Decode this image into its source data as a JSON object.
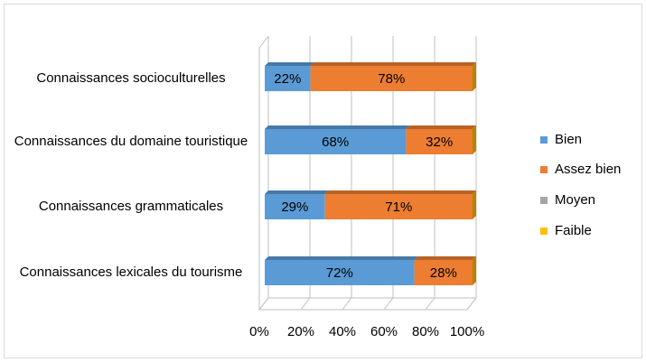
{
  "chart_data": {
    "type": "bar",
    "orientation": "horizontal",
    "stacked": true,
    "three_d": true,
    "categories": [
      "Connaissances socioculturelles",
      "Connaissances du domaine touristique",
      "Connaissances grammaticales",
      "Connaissances lexicales du tourisme"
    ],
    "series": [
      {
        "name": "Bien",
        "color": "#5b9bd5",
        "values": [
          22,
          68,
          29,
          72
        ],
        "value_labels": [
          "22%",
          "68%",
          "29%",
          "72%"
        ]
      },
      {
        "name": "Assez bien",
        "color": "#ed7d31",
        "values": [
          78,
          32,
          71,
          28
        ],
        "value_labels": [
          "78%",
          "32%",
          "71%",
          "28%"
        ]
      },
      {
        "name": "Moyen",
        "color": "#a5a5a5",
        "values": [
          0,
          0,
          0,
          0
        ]
      },
      {
        "name": "Faible",
        "color": "#ffc000",
        "values": [
          0,
          0,
          0,
          0
        ]
      }
    ],
    "xlim": [
      0,
      100
    ],
    "xticks": [
      {
        "value": 0,
        "label": "0%"
      },
      {
        "value": 20,
        "label": "20%"
      },
      {
        "value": 40,
        "label": "40%"
      },
      {
        "value": 60,
        "label": "60%"
      },
      {
        "value": 80,
        "label": "80%"
      },
      {
        "value": 100,
        "label": "100%"
      }
    ],
    "grid": true,
    "legend": "right"
  }
}
